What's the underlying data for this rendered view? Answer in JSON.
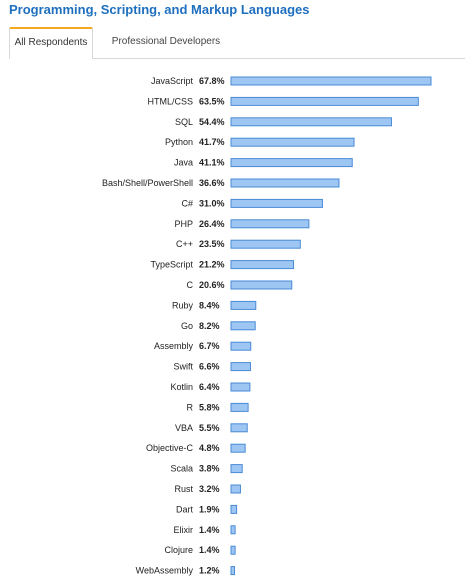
{
  "header": {
    "title": "Programming, Scripting, and Markup Languages"
  },
  "tabs": [
    {
      "label": "All Respondents",
      "active": true
    },
    {
      "label": "Professional Developers",
      "active": false
    }
  ],
  "colors": {
    "title": "#1f6fbf",
    "active_tab_accent": "#f5a623",
    "bar_fill": "#9ec6f3",
    "bar_stroke": "#4a8bd6"
  },
  "chart_data": {
    "type": "bar",
    "orientation": "horizontal",
    "title": "",
    "xlabel": "",
    "ylabel": "",
    "xlim": [
      0,
      67.8
    ],
    "grid": false,
    "legend": "none",
    "categories": [
      "JavaScript",
      "HTML/CSS",
      "SQL",
      "Python",
      "Java",
      "Bash/Shell/PowerShell",
      "C#",
      "PHP",
      "C++",
      "TypeScript",
      "C",
      "Ruby",
      "Go",
      "Assembly",
      "Swift",
      "Kotlin",
      "R",
      "VBA",
      "Objective-C",
      "Scala",
      "Rust",
      "Dart",
      "Elixir",
      "Clojure",
      "WebAssembly"
    ],
    "values": [
      67.8,
      63.5,
      54.4,
      41.7,
      41.1,
      36.6,
      31.0,
      26.4,
      23.5,
      21.2,
      20.6,
      8.4,
      8.2,
      6.7,
      6.6,
      6.4,
      5.8,
      5.5,
      4.8,
      3.8,
      3.2,
      1.9,
      1.4,
      1.4,
      1.2
    ],
    "value_labels": [
      "67.8%",
      "63.5%",
      "54.4%",
      "41.7%",
      "41.1%",
      "36.6%",
      "31.0%",
      "26.4%",
      "23.5%",
      "21.2%",
      "20.6%",
      "8.4%",
      "8.2%",
      "6.7%",
      "6.6%",
      "6.4%",
      "5.8%",
      "5.5%",
      "4.8%",
      "3.8%",
      "3.2%",
      "1.9%",
      "1.4%",
      "1.4%",
      "1.2%"
    ]
  }
}
